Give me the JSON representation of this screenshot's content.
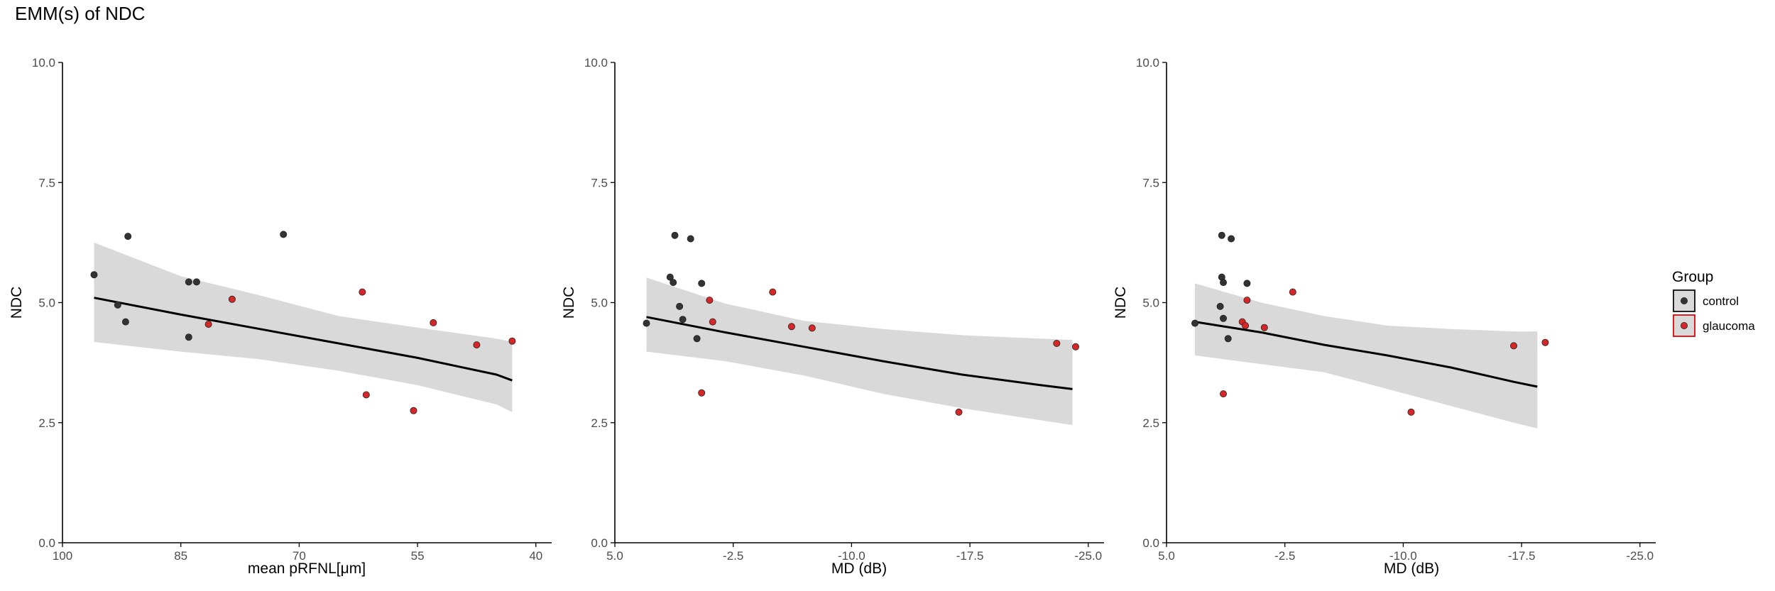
{
  "title": "EMM(s) of NDC",
  "colors": {
    "control": "#333333",
    "glaucoma": "#d62728",
    "ribbon": "#d9d9d9",
    "line": "#000000",
    "glaucoma_key_border": "#e41a1c"
  },
  "legend": {
    "title": "Group",
    "placement": "right",
    "items": [
      {
        "label": "control",
        "group": "control"
      },
      {
        "label": "glaucoma",
        "group": "glaucoma"
      }
    ]
  },
  "chart_data": [
    {
      "type": "scatter",
      "xlabel": "mean pRFNL[μm]",
      "ylabel": "NDC",
      "x_reversed": true,
      "xlim": [
        100,
        38
      ],
      "ylim": [
        0,
        10
      ],
      "xticks": [
        100,
        85,
        70,
        55,
        40
      ],
      "xtick_labels": [
        "100",
        "85",
        "70",
        "55",
        "40"
      ],
      "yticks": [
        0,
        2.5,
        5,
        7.5,
        10
      ],
      "ytick_labels": [
        "0.0",
        "2.5",
        "5.0",
        "7.5",
        "10.0"
      ],
      "grid": false,
      "fit": {
        "x": [
          96,
          85,
          75,
          65,
          55,
          45,
          43
        ],
        "y": [
          5.1,
          4.75,
          4.45,
          4.15,
          3.85,
          3.5,
          3.38
        ],
        "lower": [
          4.18,
          3.98,
          3.82,
          3.58,
          3.28,
          2.88,
          2.72
        ],
        "upper": [
          6.25,
          5.55,
          5.15,
          4.72,
          4.48,
          4.25,
          4.18
        ]
      },
      "points": [
        {
          "x": 96,
          "y": 5.58,
          "group": "control"
        },
        {
          "x": 93,
          "y": 4.95,
          "group": "control"
        },
        {
          "x": 91.7,
          "y": 6.38,
          "group": "control"
        },
        {
          "x": 92,
          "y": 4.6,
          "group": "control"
        },
        {
          "x": 84,
          "y": 5.43,
          "group": "control"
        },
        {
          "x": 84,
          "y": 4.28,
          "group": "control"
        },
        {
          "x": 83,
          "y": 5.43,
          "group": "control"
        },
        {
          "x": 72,
          "y": 6.42,
          "group": "control"
        },
        {
          "x": 81.5,
          "y": 4.55,
          "group": "glaucoma"
        },
        {
          "x": 78.5,
          "y": 5.07,
          "group": "glaucoma"
        },
        {
          "x": 62,
          "y": 5.22,
          "group": "glaucoma"
        },
        {
          "x": 61.5,
          "y": 3.08,
          "group": "glaucoma"
        },
        {
          "x": 55.5,
          "y": 2.75,
          "group": "glaucoma"
        },
        {
          "x": 53,
          "y": 4.58,
          "group": "glaucoma"
        },
        {
          "x": 47.5,
          "y": 4.12,
          "group": "glaucoma"
        },
        {
          "x": 43,
          "y": 4.2,
          "group": "glaucoma"
        }
      ]
    },
    {
      "type": "scatter",
      "xlabel": "MD (dB)",
      "ylabel": "NDC",
      "x_reversed": true,
      "xlim": [
        5,
        -26
      ],
      "ylim": [
        0,
        10
      ],
      "xticks": [
        5,
        -2.5,
        -10,
        -17.5,
        -25
      ],
      "xtick_labels": [
        "5.0",
        "-2.5",
        "-10.0",
        "-17.5",
        "-25.0"
      ],
      "yticks": [
        0,
        2.5,
        5,
        7.5,
        10
      ],
      "ytick_labels": [
        "0.0",
        "2.5",
        "5.0",
        "7.5",
        "10.0"
      ],
      "grid": false,
      "fit": {
        "x": [
          3,
          -2,
          -7,
          -12,
          -17,
          -22,
          -24
        ],
        "y": [
          4.7,
          4.38,
          4.08,
          3.78,
          3.5,
          3.28,
          3.2
        ],
        "lower": [
          3.98,
          3.78,
          3.48,
          3.1,
          2.8,
          2.55,
          2.45
        ],
        "upper": [
          5.52,
          4.98,
          4.62,
          4.45,
          4.32,
          4.25,
          4.22
        ]
      },
      "points": [
        {
          "x": 3,
          "y": 4.57,
          "group": "control"
        },
        {
          "x": 1.5,
          "y": 5.53,
          "group": "control"
        },
        {
          "x": 1.2,
          "y": 6.4,
          "group": "control"
        },
        {
          "x": 1.3,
          "y": 5.42,
          "group": "control"
        },
        {
          "x": 0.9,
          "y": 4.92,
          "group": "control"
        },
        {
          "x": 0.7,
          "y": 4.65,
          "group": "control"
        },
        {
          "x": 0.2,
          "y": 6.33,
          "group": "control"
        },
        {
          "x": -0.2,
          "y": 4.25,
          "group": "control"
        },
        {
          "x": -0.5,
          "y": 5.4,
          "group": "control"
        },
        {
          "x": -0.5,
          "y": 3.12,
          "group": "glaucoma"
        },
        {
          "x": -1.0,
          "y": 5.05,
          "group": "glaucoma"
        },
        {
          "x": -1.2,
          "y": 4.6,
          "group": "glaucoma"
        },
        {
          "x": -5.0,
          "y": 5.22,
          "group": "glaucoma"
        },
        {
          "x": -6.2,
          "y": 4.5,
          "group": "glaucoma"
        },
        {
          "x": -7.5,
          "y": 4.47,
          "group": "glaucoma"
        },
        {
          "x": -16.8,
          "y": 2.72,
          "group": "glaucoma"
        },
        {
          "x": -23,
          "y": 4.15,
          "group": "glaucoma"
        },
        {
          "x": -24.2,
          "y": 4.08,
          "group": "glaucoma"
        }
      ]
    },
    {
      "type": "scatter",
      "xlabel": "MD (dB)",
      "ylabel": "NDC",
      "x_reversed": true,
      "xlim": [
        5,
        -26
      ],
      "ylim": [
        0,
        10
      ],
      "xticks": [
        5,
        -2.5,
        -10,
        -17.5,
        -25
      ],
      "xtick_labels": [
        "5.0",
        "-2.5",
        "-10.0",
        "-17.5",
        "-25.0"
      ],
      "yticks": [
        0,
        2.5,
        5,
        7.5,
        10
      ],
      "ytick_labels": [
        "0.0",
        "2.5",
        "5.0",
        "7.5",
        "10.0"
      ],
      "grid": false,
      "fit": {
        "x": [
          3.2,
          -1,
          -5,
          -9,
          -13,
          -17,
          -18.5
        ],
        "y": [
          4.6,
          4.38,
          4.12,
          3.9,
          3.65,
          3.35,
          3.25
        ],
        "lower": [
          3.9,
          3.72,
          3.55,
          3.2,
          2.85,
          2.5,
          2.38
        ],
        "upper": [
          5.4,
          5.0,
          4.72,
          4.52,
          4.45,
          4.4,
          4.4
        ]
      },
      "points": [
        {
          "x": 3.2,
          "y": 4.57,
          "group": "control"
        },
        {
          "x": 1.6,
          "y": 4.92,
          "group": "control"
        },
        {
          "x": 1.5,
          "y": 6.4,
          "group": "control"
        },
        {
          "x": 1.5,
          "y": 5.53,
          "group": "control"
        },
        {
          "x": 1.4,
          "y": 5.42,
          "group": "control"
        },
        {
          "x": 1.4,
          "y": 4.67,
          "group": "control"
        },
        {
          "x": 1.1,
          "y": 4.25,
          "group": "control"
        },
        {
          "x": 0.9,
          "y": 6.33,
          "group": "control"
        },
        {
          "x": -0.1,
          "y": 5.4,
          "group": "control"
        },
        {
          "x": 1.4,
          "y": 3.1,
          "group": "glaucoma"
        },
        {
          "x": 0.2,
          "y": 4.6,
          "group": "glaucoma"
        },
        {
          "x": -0.1,
          "y": 5.05,
          "group": "glaucoma"
        },
        {
          "x": 0.0,
          "y": 4.52,
          "group": "glaucoma"
        },
        {
          "x": -1.2,
          "y": 4.48,
          "group": "glaucoma"
        },
        {
          "x": -3.0,
          "y": 5.22,
          "group": "glaucoma"
        },
        {
          "x": -10.5,
          "y": 2.72,
          "group": "glaucoma"
        },
        {
          "x": -17.0,
          "y": 4.1,
          "group": "glaucoma"
        },
        {
          "x": -19.0,
          "y": 4.17,
          "group": "glaucoma"
        }
      ]
    }
  ]
}
